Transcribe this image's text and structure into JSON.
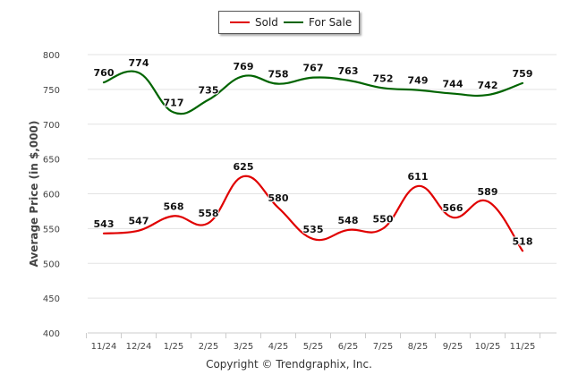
{
  "legend": {
    "sold_label": "Sold",
    "for_sale_label": "For Sale"
  },
  "footer": {
    "copyright": "Copyright © Trendgraphix, Inc."
  },
  "chart_data": {
    "type": "line",
    "title": "",
    "xlabel": "",
    "ylabel": "Average Price (in $,000)",
    "ylim": [
      400,
      800
    ],
    "yticks": [
      400,
      450,
      500,
      550,
      600,
      650,
      700,
      750,
      800
    ],
    "categories": [
      "11/24",
      "12/24",
      "1/25",
      "2/25",
      "3/25",
      "4/25",
      "5/25",
      "6/25",
      "7/25",
      "8/25",
      "9/25",
      "10/25",
      "11/25"
    ],
    "grid": true,
    "legend_position": "top-center",
    "series": [
      {
        "name": "Sold",
        "color": "#e00000",
        "values": [
          543,
          547,
          568,
          558,
          625,
          580,
          535,
          548,
          550,
          611,
          566,
          589,
          518
        ]
      },
      {
        "name": "For Sale",
        "color": "#006400",
        "values": [
          760,
          774,
          717,
          735,
          769,
          758,
          767,
          763,
          752,
          749,
          744,
          742,
          759
        ]
      }
    ]
  }
}
